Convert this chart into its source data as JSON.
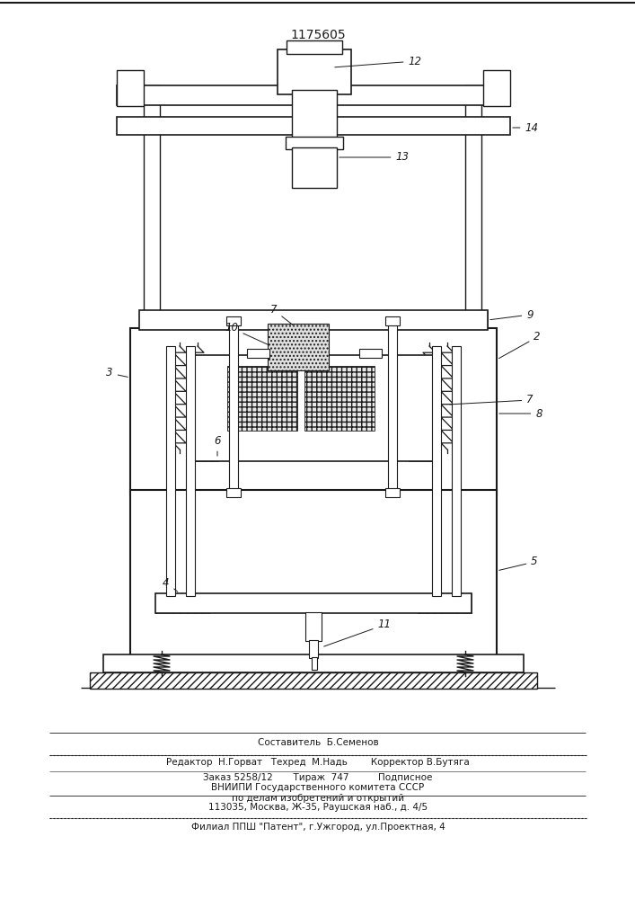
{
  "patent_number": "1175605",
  "bg_color": "#ffffff",
  "line_color": "#1a1a1a",
  "footer_lines": [
    "Составитель  Б.Семенов",
    "Редактор  Н.Горват   Техред  М.Надь        Корректор В.Бутяга",
    "Заказ 5258/12       Тираж  747          Подписное",
    "ВНИИПИ Государственного комитета СССР",
    "по делам изобретений и открытий",
    "113035, Москва, Ж-35, Раушская наб., д. 4/5",
    "Филиал ППШ \"Патент\", г.Ужгород, ул.Проектная, 4"
  ]
}
